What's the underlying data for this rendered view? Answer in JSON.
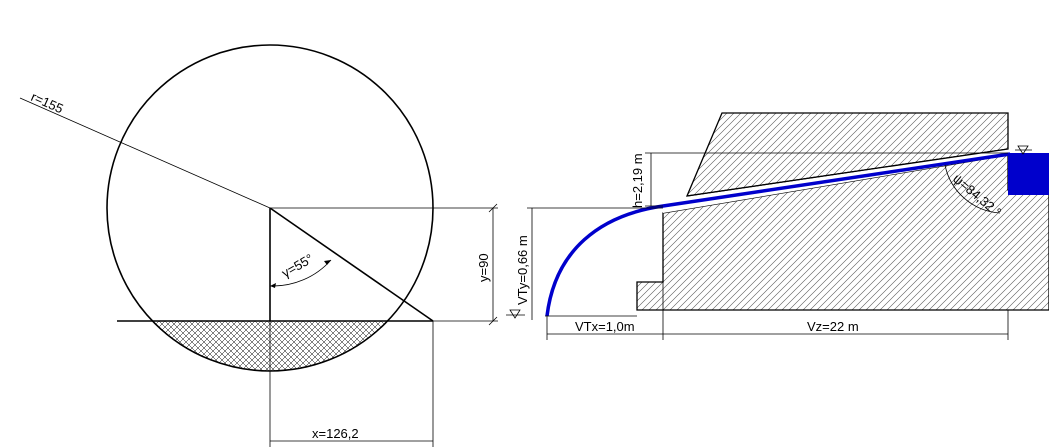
{
  "left_figure": {
    "radius_label": "r=155",
    "angle_label": "γ=55°",
    "height_label": "y=90",
    "width_label": "x=126,2"
  },
  "right_figure": {
    "height_label": "h=2,19 m",
    "vty_label": "VTy=0,66 m",
    "vtx_label": "VTx=1,0m",
    "vz_label": "Vz=22 m",
    "angle_label": "ψ=84,32 °"
  },
  "colors": {
    "flow_line": "#0000cc",
    "water_block": "#0000cc",
    "hatch": "#000000"
  }
}
